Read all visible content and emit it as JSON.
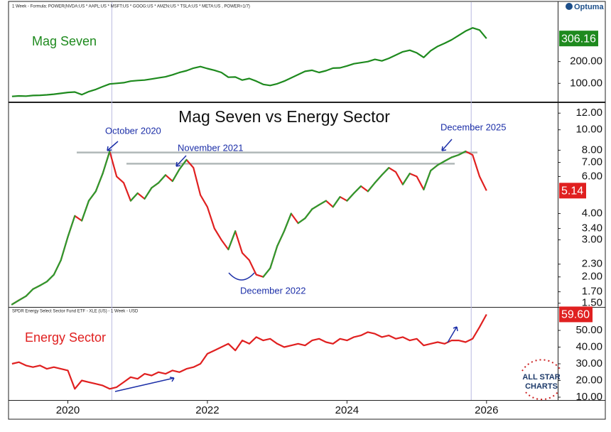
{
  "brand": "Optuma",
  "watermark": [
    "ALL STAR",
    "CHARTS"
  ],
  "chart_data": [
    {
      "type": "line",
      "subtitle": "1 Week - Formula: POWER(NVDA:US * AAPL:US * MSFT:US * GOOG:US * AMZN:US * TSLA:US * META:US , POWER=1/7)",
      "label": "Mag Seven",
      "color": "#1e8a1e",
      "x": [
        2019.2,
        2019.3,
        2019.4,
        2019.5,
        2019.6,
        2019.7,
        2019.8,
        2019.9,
        2020.0,
        2020.1,
        2020.2,
        2020.3,
        2020.4,
        2020.5,
        2020.6,
        2020.7,
        2020.8,
        2020.9,
        2021.0,
        2021.1,
        2021.2,
        2021.3,
        2021.4,
        2021.5,
        2021.6,
        2021.7,
        2021.8,
        2021.9,
        2022.0,
        2022.1,
        2022.2,
        2022.3,
        2022.4,
        2022.5,
        2022.6,
        2022.7,
        2022.8,
        2022.9,
        2023.0,
        2023.1,
        2023.2,
        2023.3,
        2023.4,
        2023.5,
        2023.6,
        2023.7,
        2023.8,
        2023.9,
        2024.0,
        2024.1,
        2024.2,
        2024.3,
        2024.4,
        2024.5,
        2024.6,
        2024.7,
        2024.8,
        2024.9,
        2025.0,
        2025.1,
        2025.2,
        2025.3,
        2025.4,
        2025.5,
        2025.6,
        2025.7,
        2025.8,
        2025.9,
        2026.0
      ],
      "values": [
        40,
        42,
        41,
        44,
        45,
        47,
        50,
        54,
        58,
        60,
        48,
        62,
        72,
        85,
        97,
        100,
        103,
        110,
        113,
        115,
        120,
        125,
        130,
        139,
        150,
        158,
        170,
        177,
        168,
        160,
        150,
        128,
        129,
        115,
        122,
        110,
        95,
        90,
        98,
        110,
        125,
        140,
        155,
        160,
        150,
        158,
        170,
        171,
        180,
        190,
        195,
        200,
        210,
        203,
        215,
        230,
        245,
        252,
        240,
        219,
        250,
        270,
        284,
        300,
        320,
        340,
        355,
        345,
        306.16
      ],
      "ylim": [
        16,
        470
      ],
      "yticks": [
        {
          "value": 100,
          "label": "100.00"
        },
        {
          "value": 200,
          "label": "200.00"
        }
      ]
    },
    {
      "type": "line",
      "title": "Mag Seven vs Energy Sector",
      "log_scale": true,
      "up_color": "#2e9a2e",
      "down_color": "#e02020",
      "level_color": "#b0b8b8",
      "annotations": [
        "October 2020",
        "November 2021",
        "December 2022",
        "December 2025"
      ],
      "levels": [
        7.8,
        6.9
      ],
      "x": [
        2019.2,
        2019.3,
        2019.4,
        2019.5,
        2019.6,
        2019.7,
        2019.8,
        2019.9,
        2020.0,
        2020.1,
        2020.2,
        2020.3,
        2020.4,
        2020.5,
        2020.6,
        2020.7,
        2020.8,
        2020.9,
        2021.0,
        2021.1,
        2021.2,
        2021.3,
        2021.4,
        2021.5,
        2021.6,
        2021.7,
        2021.8,
        2021.9,
        2022.0,
        2022.1,
        2022.2,
        2022.3,
        2022.4,
        2022.5,
        2022.6,
        2022.7,
        2022.8,
        2022.9,
        2023.0,
        2023.1,
        2023.2,
        2023.3,
        2023.4,
        2023.5,
        2023.6,
        2023.7,
        2023.8,
        2023.9,
        2024.0,
        2024.1,
        2024.2,
        2024.3,
        2024.4,
        2024.5,
        2024.6,
        2024.7,
        2024.8,
        2024.9,
        2025.0,
        2025.1,
        2025.2,
        2025.3,
        2025.4,
        2025.5,
        2025.6,
        2025.7,
        2025.8,
        2025.9,
        2026.0
      ],
      "values": [
        1.48,
        1.55,
        1.62,
        1.75,
        1.82,
        1.9,
        2.05,
        2.4,
        3.1,
        3.9,
        3.7,
        4.6,
        5.1,
        6.2,
        7.9,
        6.0,
        5.6,
        4.6,
        5.0,
        4.7,
        5.3,
        5.6,
        6.1,
        5.7,
        6.5,
        7.2,
        6.6,
        4.9,
        4.3,
        3.4,
        3.0,
        2.7,
        3.3,
        2.6,
        2.4,
        2.05,
        2.0,
        2.2,
        2.8,
        3.3,
        4.0,
        3.6,
        3.8,
        4.2,
        4.4,
        4.6,
        4.3,
        4.8,
        4.6,
        5.0,
        5.4,
        5.1,
        5.6,
        6.1,
        6.6,
        6.3,
        5.5,
        6.2,
        6.0,
        5.2,
        6.4,
        6.8,
        7.1,
        7.4,
        7.6,
        7.9,
        7.6,
        6.0,
        5.14
      ],
      "ylim": [
        1.44,
        13.3
      ],
      "yticks": [
        {
          "value": 1.5,
          "label": "1.50"
        },
        {
          "value": 1.7,
          "label": "1.70"
        },
        {
          "value": 2,
          "label": "2.00"
        },
        {
          "value": 2.3,
          "label": "2.30"
        },
        {
          "value": 3,
          "label": "3.00"
        },
        {
          "value": 3.4,
          "label": "3.40"
        },
        {
          "value": 4,
          "label": "4.00"
        },
        {
          "value": 6,
          "label": "6.00"
        },
        {
          "value": 7,
          "label": "7.00"
        },
        {
          "value": 8,
          "label": "8.00"
        },
        {
          "value": 10,
          "label": "10.00"
        },
        {
          "value": 12,
          "label": "12.00"
        }
      ]
    },
    {
      "type": "line",
      "subtitle": "SPDR Energy Select Sector Fund ETF - XLE (US) - 1 Week - USD",
      "label": "Energy Sector",
      "color": "#e02020",
      "x": [
        2019.2,
        2019.3,
        2019.4,
        2019.5,
        2019.6,
        2019.7,
        2019.8,
        2019.9,
        2020.0,
        2020.1,
        2020.2,
        2020.3,
        2020.4,
        2020.5,
        2020.6,
        2020.7,
        2020.8,
        2020.9,
        2021.0,
        2021.1,
        2021.2,
        2021.3,
        2021.4,
        2021.5,
        2021.6,
        2021.7,
        2021.8,
        2021.9,
        2022.0,
        2022.1,
        2022.2,
        2022.3,
        2022.4,
        2022.5,
        2022.6,
        2022.7,
        2022.8,
        2022.9,
        2023.0,
        2023.1,
        2023.2,
        2023.3,
        2023.4,
        2023.5,
        2023.6,
        2023.7,
        2023.8,
        2023.9,
        2024.0,
        2024.1,
        2024.2,
        2024.3,
        2024.4,
        2024.5,
        2024.6,
        2024.7,
        2024.8,
        2024.9,
        2025.0,
        2025.1,
        2025.2,
        2025.3,
        2025.4,
        2025.5,
        2025.6,
        2025.7,
        2025.8,
        2025.9,
        2026.0
      ],
      "values": [
        30,
        31,
        29,
        28,
        29,
        27,
        28,
        27,
        26,
        15,
        20,
        19,
        18,
        17,
        15,
        16,
        19,
        22,
        21,
        24,
        23,
        25,
        24,
        26,
        25,
        27,
        28,
        30,
        36,
        38,
        40,
        42,
        38,
        44,
        42,
        46,
        44,
        45,
        42,
        40,
        41,
        42,
        41,
        44,
        45,
        43,
        42,
        45,
        44,
        46,
        47,
        49,
        48,
        46,
        47,
        45,
        46,
        44,
        45,
        41,
        42,
        43,
        42,
        44,
        44,
        43,
        45,
        52,
        59.6
      ],
      "value_labels": [
        null,
        null,
        null,
        null,
        null,
        null,
        null,
        null,
        null,
        null,
        null,
        null,
        null,
        null,
        null,
        null,
        null,
        null,
        null,
        null,
        null,
        null,
        null,
        null,
        null,
        null,
        null,
        null,
        null,
        null,
        null,
        null,
        null,
        null,
        null,
        null,
        null,
        null,
        null,
        null,
        null,
        null,
        null,
        null,
        null,
        null,
        null,
        null,
        null,
        null,
        null,
        null,
        null,
        null,
        null,
        null,
        null,
        null,
        null,
        null,
        null,
        null,
        null,
        null,
        null,
        null,
        null,
        null,
        "59.60"
      ],
      "ylim": [
        8.3,
        63.2
      ],
      "yticks": [
        {
          "value": 10,
          "label": "10.00"
        },
        {
          "value": 20,
          "label": "20.00"
        },
        {
          "value": 30,
          "label": "30.00"
        },
        {
          "value": 40,
          "label": "40.00"
        },
        {
          "value": 50,
          "label": "50.00"
        }
      ],
      "xlim": [
        2019.15,
        2027.02
      ],
      "xticks": [
        2020,
        2022,
        2024,
        2026
      ],
      "vlines": [
        2020.63,
        2025.78
      ],
      "vline_color": "#b8b8e0"
    }
  ]
}
